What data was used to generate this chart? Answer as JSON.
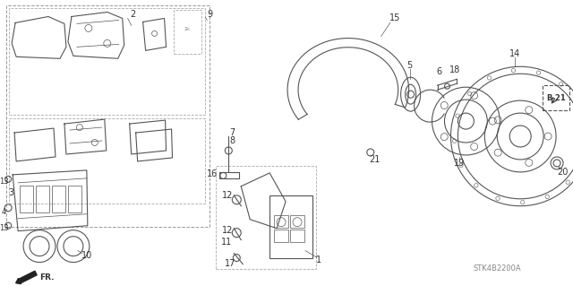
{
  "bg_color": "#ffffff",
  "fig_width": 6.4,
  "fig_height": 3.19,
  "watermark": "STK4B2200A",
  "line_color": "#555555",
  "text_color": "#333333",
  "label_B21": "B-21",
  "arrow_label": "FR."
}
